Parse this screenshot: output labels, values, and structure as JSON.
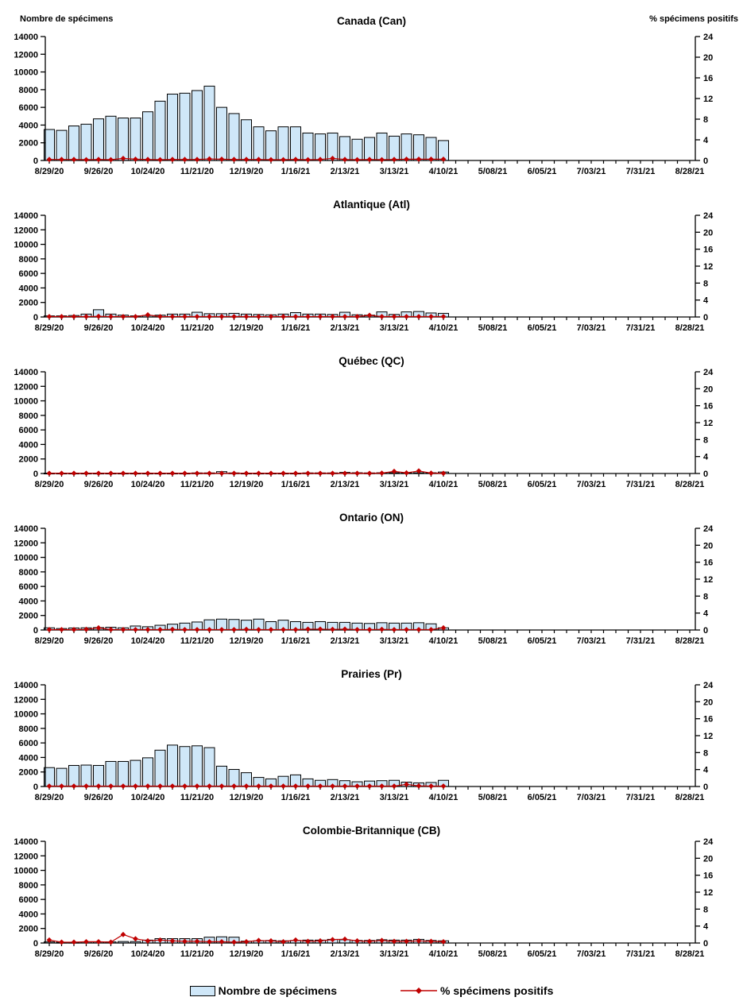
{
  "axis": {
    "left_label": "Nombre de spécimens",
    "right_label": "% spécimens positifs"
  },
  "legend": {
    "items": [
      {
        "label": "Nombre de spécimens",
        "swatch": "bar"
      },
      {
        "label": "% spécimens positifs",
        "swatch": "line-diamond"
      }
    ]
  },
  "colors": {
    "bar_fill": "#cfe7f8",
    "bar_border": "#000000",
    "line": "#c00000",
    "axis": "#000000",
    "text": "#000000"
  },
  "chart_data": {
    "type": "bar+line",
    "shared": {
      "ylabel_left": "Nombre de spécimens",
      "ylabel_right": "% spécimens positifs",
      "ylim_left": [
        0,
        14000
      ],
      "ylim_right": [
        0,
        24
      ],
      "left_axis_ticks": [
        0,
        2000,
        4000,
        6000,
        8000,
        10000,
        12000,
        14000
      ],
      "right_axis_ticks": [
        0,
        4,
        8,
        12,
        16,
        20,
        24
      ],
      "weeks_total_on_axis": 53,
      "x_tick_labels": [
        "8/29/20",
        "9/26/20",
        "10/24/20",
        "11/21/20",
        "12/19/20",
        "1/16/21",
        "2/13/21",
        "3/13/21",
        "4/10/21",
        "5/08/21",
        "6/05/21",
        "7/03/21",
        "7/31/21",
        "8/28/21"
      ],
      "weeks": [
        "8/29/20",
        "9/5/20",
        "9/12/20",
        "9/19/20",
        "9/26/20",
        "10/3/20",
        "10/10/20",
        "10/17/20",
        "10/24/20",
        "10/31/20",
        "11/7/20",
        "11/14/20",
        "11/21/20",
        "11/28/20",
        "12/5/20",
        "12/12/20",
        "12/19/20",
        "12/26/20",
        "1/2/21",
        "1/9/21",
        "1/16/21",
        "1/23/21",
        "1/30/21",
        "2/6/21",
        "2/13/21",
        "2/20/21",
        "2/27/21",
        "3/6/21",
        "3/13/21",
        "3/20/21",
        "3/27/21",
        "4/3/21",
        "4/10/21"
      ],
      "grid": false,
      "legend_position": "bottom"
    },
    "charts": [
      {
        "title": "Canada (Can)",
        "code": "Can",
        "bars": [
          3500,
          3400,
          3900,
          4100,
          4700,
          5000,
          4800,
          4800,
          5500,
          6700,
          7500,
          7600,
          7900,
          8400,
          6000,
          5300,
          4600,
          3800,
          3350,
          3800,
          3800,
          3100,
          3000,
          3100,
          2700,
          2400,
          2600,
          3100,
          2750,
          3000,
          2900,
          2600,
          2250
        ],
        "pct_positive": [
          0.2,
          0.2,
          0.2,
          0.15,
          0.2,
          0.15,
          0.4,
          0.25,
          0.2,
          0.15,
          0.2,
          0.2,
          0.2,
          0.3,
          0.25,
          0.2,
          0.2,
          0.2,
          0.15,
          0.15,
          0.2,
          0.15,
          0.2,
          0.4,
          0.2,
          0.15,
          0.2,
          0.15,
          0.2,
          0.25,
          0.25,
          0.25,
          0.25
        ]
      },
      {
        "title": "Atlantique (Atl)",
        "code": "Atl",
        "bars": [
          150,
          150,
          200,
          400,
          1000,
          400,
          250,
          150,
          200,
          250,
          400,
          400,
          650,
          450,
          450,
          500,
          400,
          350,
          300,
          400,
          600,
          400,
          400,
          350,
          650,
          300,
          250,
          700,
          350,
          700,
          750,
          550,
          500
        ],
        "pct_positive": [
          0.1,
          0.1,
          0.1,
          0.1,
          0.15,
          0.1,
          0.1,
          0.1,
          0.5,
          0.1,
          0.1,
          0.1,
          0.1,
          0.1,
          0.1,
          0.1,
          0.1,
          0.1,
          0.1,
          0.1,
          0.1,
          0.1,
          0.1,
          0.1,
          0.1,
          0.1,
          0.4,
          0.1,
          0.1,
          0.1,
          0.1,
          0.1,
          0.1
        ]
      },
      {
        "title": "Québec (QC)",
        "code": "QC",
        "bars": [
          50,
          50,
          50,
          50,
          50,
          50,
          50,
          50,
          50,
          50,
          50,
          50,
          80,
          80,
          250,
          80,
          50,
          50,
          50,
          50,
          50,
          80,
          80,
          80,
          150,
          100,
          80,
          100,
          100,
          100,
          100,
          100,
          200
        ],
        "pct_positive": [
          0.05,
          0.05,
          0.05,
          0.05,
          0.05,
          0.05,
          0.05,
          0.05,
          0.05,
          0.05,
          0.05,
          0.05,
          0.05,
          0.05,
          0.05,
          0.05,
          0.05,
          0.05,
          0.05,
          0.05,
          0.05,
          0.05,
          0.05,
          0.05,
          0.05,
          0.05,
          0.05,
          0.1,
          0.5,
          0.15,
          0.6,
          0.1,
          0.05
        ]
      },
      {
        "title": "Ontario (ON)",
        "code": "ON",
        "bars": [
          300,
          200,
          280,
          300,
          330,
          380,
          300,
          550,
          450,
          650,
          800,
          950,
          1100,
          1400,
          1500,
          1450,
          1350,
          1500,
          1150,
          1350,
          1150,
          1050,
          1150,
          1050,
          1050,
          950,
          900,
          1000,
          950,
          950,
          1000,
          850,
          300
        ],
        "pct_positive": [
          0.1,
          0.1,
          0.1,
          0.15,
          0.5,
          0.1,
          0.1,
          0.1,
          0.1,
          0.1,
          0.15,
          0.1,
          0.1,
          0.1,
          0.1,
          0.1,
          0.15,
          0.1,
          0.1,
          0.1,
          0.1,
          0.2,
          0.2,
          0.15,
          0.2,
          0.1,
          0.1,
          0.15,
          0.1,
          0.1,
          0.1,
          0.1,
          0.5
        ]
      },
      {
        "title": "Prairies (Pr)",
        "code": "Pr",
        "bars": [
          2600,
          2500,
          2900,
          2950,
          2900,
          3450,
          3450,
          3600,
          3950,
          5000,
          5700,
          5500,
          5600,
          5350,
          2800,
          2350,
          1900,
          1250,
          1050,
          1400,
          1600,
          1050,
          850,
          950,
          800,
          650,
          750,
          800,
          850,
          600,
          500,
          550,
          850
        ],
        "pct_positive": [
          0.1,
          0.1,
          0.1,
          0.1,
          0.1,
          0.1,
          0.1,
          0.1,
          0.1,
          0.1,
          0.1,
          0.1,
          0.1,
          0.1,
          0.1,
          0.1,
          0.1,
          0.1,
          0.1,
          0.1,
          0.1,
          0.1,
          0.1,
          0.1,
          0.1,
          0.1,
          0.1,
          0.1,
          0.1,
          0.5,
          0.15,
          0.1,
          0.1
        ]
      },
      {
        "title": "Colombie-Britannique (CB)",
        "code": "CB",
        "bars": [
          150,
          100,
          100,
          150,
          150,
          150,
          200,
          200,
          400,
          600,
          600,
          600,
          600,
          800,
          850,
          800,
          250,
          300,
          350,
          300,
          350,
          400,
          400,
          500,
          450,
          350,
          350,
          450,
          400,
          400,
          500,
          350,
          300
        ],
        "pct_positive": [
          0.7,
          0.2,
          0.2,
          0.3,
          0.3,
          0.2,
          2.0,
          1.0,
          0.5,
          0.7,
          0.5,
          0.4,
          0.4,
          0.3,
          0.3,
          0.2,
          0.3,
          0.6,
          0.5,
          0.3,
          0.7,
          0.4,
          0.5,
          0.8,
          0.9,
          0.5,
          0.4,
          0.6,
          0.4,
          0.4,
          0.5,
          0.4,
          0.3
        ]
      }
    ]
  }
}
